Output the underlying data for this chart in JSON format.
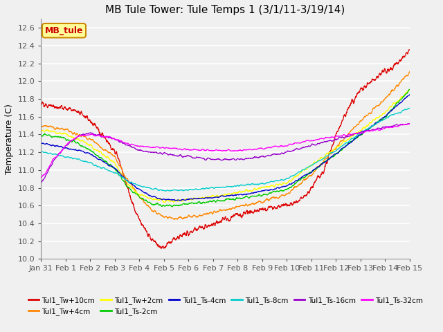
{
  "title": "MB Tule Tower: Tule Temps 1 (3/1/11-3/19/14)",
  "ylabel": "Temperature (C)",
  "xlim_days": [
    0,
    15
  ],
  "ylim": [
    10.0,
    12.7
  ],
  "yticks": [
    10.0,
    10.2,
    10.4,
    10.6,
    10.8,
    11.0,
    11.2,
    11.4,
    11.6,
    11.8,
    12.0,
    12.2,
    12.4,
    12.6
  ],
  "xtick_labels": [
    "Jan 31",
    "Feb 1",
    "Feb 2",
    "Feb 3",
    "Feb 4",
    "Feb 5",
    "Feb 6",
    "Feb 7",
    "Feb 8",
    "Feb 9",
    "Feb 10",
    "Feb 11",
    "Feb 12",
    "Feb 13",
    "Feb 14",
    "Feb 15"
  ],
  "legend_label_box": "MB_tule",
  "legend_box_color": "#ffff99",
  "legend_box_edge": "#cc8800",
  "legend_box_text": "#cc0000",
  "series": [
    {
      "label": "Tul1_Tw+10cm",
      "color": "#dd0000"
    },
    {
      "label": "Tul1_Tw+4cm",
      "color": "#ff8800"
    },
    {
      "label": "Tul1_Tw+2cm",
      "color": "#ffff00"
    },
    {
      "label": "Tul1_Ts-2cm",
      "color": "#00cc00"
    },
    {
      "label": "Tul1_Ts-4cm",
      "color": "#0000cc"
    },
    {
      "label": "Tul1_Ts-8cm",
      "color": "#00cccc"
    },
    {
      "label": "Tul1_Ts-16cm",
      "color": "#9900cc"
    },
    {
      "label": "Tul1_Ts-32cm",
      "color": "#ff00ff"
    }
  ],
  "background_color": "#f0f0f0",
  "grid_color": "#ffffff",
  "title_fontsize": 11,
  "axis_fontsize": 9,
  "tick_fontsize": 8
}
